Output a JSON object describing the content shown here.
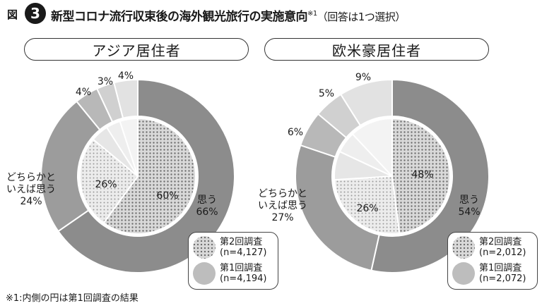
{
  "figure": {
    "label": "図",
    "number": "3",
    "title": "新型コロナ流行収束後の海外観光旅行の実施意向",
    "title_note": "※1",
    "title_tail": "（回答は1つ選択）"
  },
  "panels": {
    "left": {
      "title": "アジア居住者"
    },
    "right": {
      "title": "欧米豪居住者"
    }
  },
  "legend": {
    "wave2": {
      "name": "第2回調査",
      "n_left": "(n=4,127)",
      "n_right": "(n=2,012)"
    },
    "wave1": {
      "name": "第1回調査",
      "n_left": "(n=4,194)",
      "n_right": "(n=2,072)"
    }
  },
  "footnote": "※1:内側の円は第1回調査の結果",
  "colors": {
    "outer_shade_1": "#8c8c8c",
    "outer_shade_2": "#9c9c9c",
    "outer_shade_3": "#b8b8b8",
    "outer_shade_4": "#d0d0d0",
    "outer_shade_5": "#e2e2e2",
    "inner_dots": "#707070",
    "inner_base": "#d9d9d9",
    "border": "#ffffff"
  },
  "chart_data": [
    {
      "type": "pie",
      "title": "アジア居住者",
      "series": [
        {
          "name": "第2回調査",
          "categories": [
            "思う",
            "どちらかといえば思う",
            "",
            "",
            ""
          ],
          "values": [
            66,
            24,
            4,
            3,
            4
          ],
          "labels": [
            "思う\n66%",
            "どちらかと\nいえば思う\n24%",
            "4%",
            "3%",
            "4%"
          ]
        },
        {
          "name": "第1回調査",
          "categories": [
            "思う",
            "どちらかといえば思う",
            "",
            "",
            ""
          ],
          "values": [
            60,
            26,
            5,
            4,
            5
          ],
          "labels": [
            "60%",
            "26%",
            "",
            "",
            ""
          ]
        }
      ]
    },
    {
      "type": "pie",
      "title": "欧米豪居住者",
      "series": [
        {
          "name": "第2回調査",
          "categories": [
            "思う",
            "どちらかといえば思う",
            "",
            "",
            ""
          ],
          "values": [
            54,
            27,
            6,
            5,
            9
          ],
          "labels": [
            "思う\n54%",
            "どちらかと\nいえば思う\n27%",
            "6%",
            "5%",
            "9%"
          ]
        },
        {
          "name": "第1回調査",
          "categories": [
            "思う",
            "どちらかといえば思う",
            "",
            "",
            ""
          ],
          "values": [
            48,
            26,
            8,
            6,
            12
          ],
          "labels": [
            "48%",
            "26%",
            "",
            "",
            ""
          ]
        }
      ]
    }
  ]
}
